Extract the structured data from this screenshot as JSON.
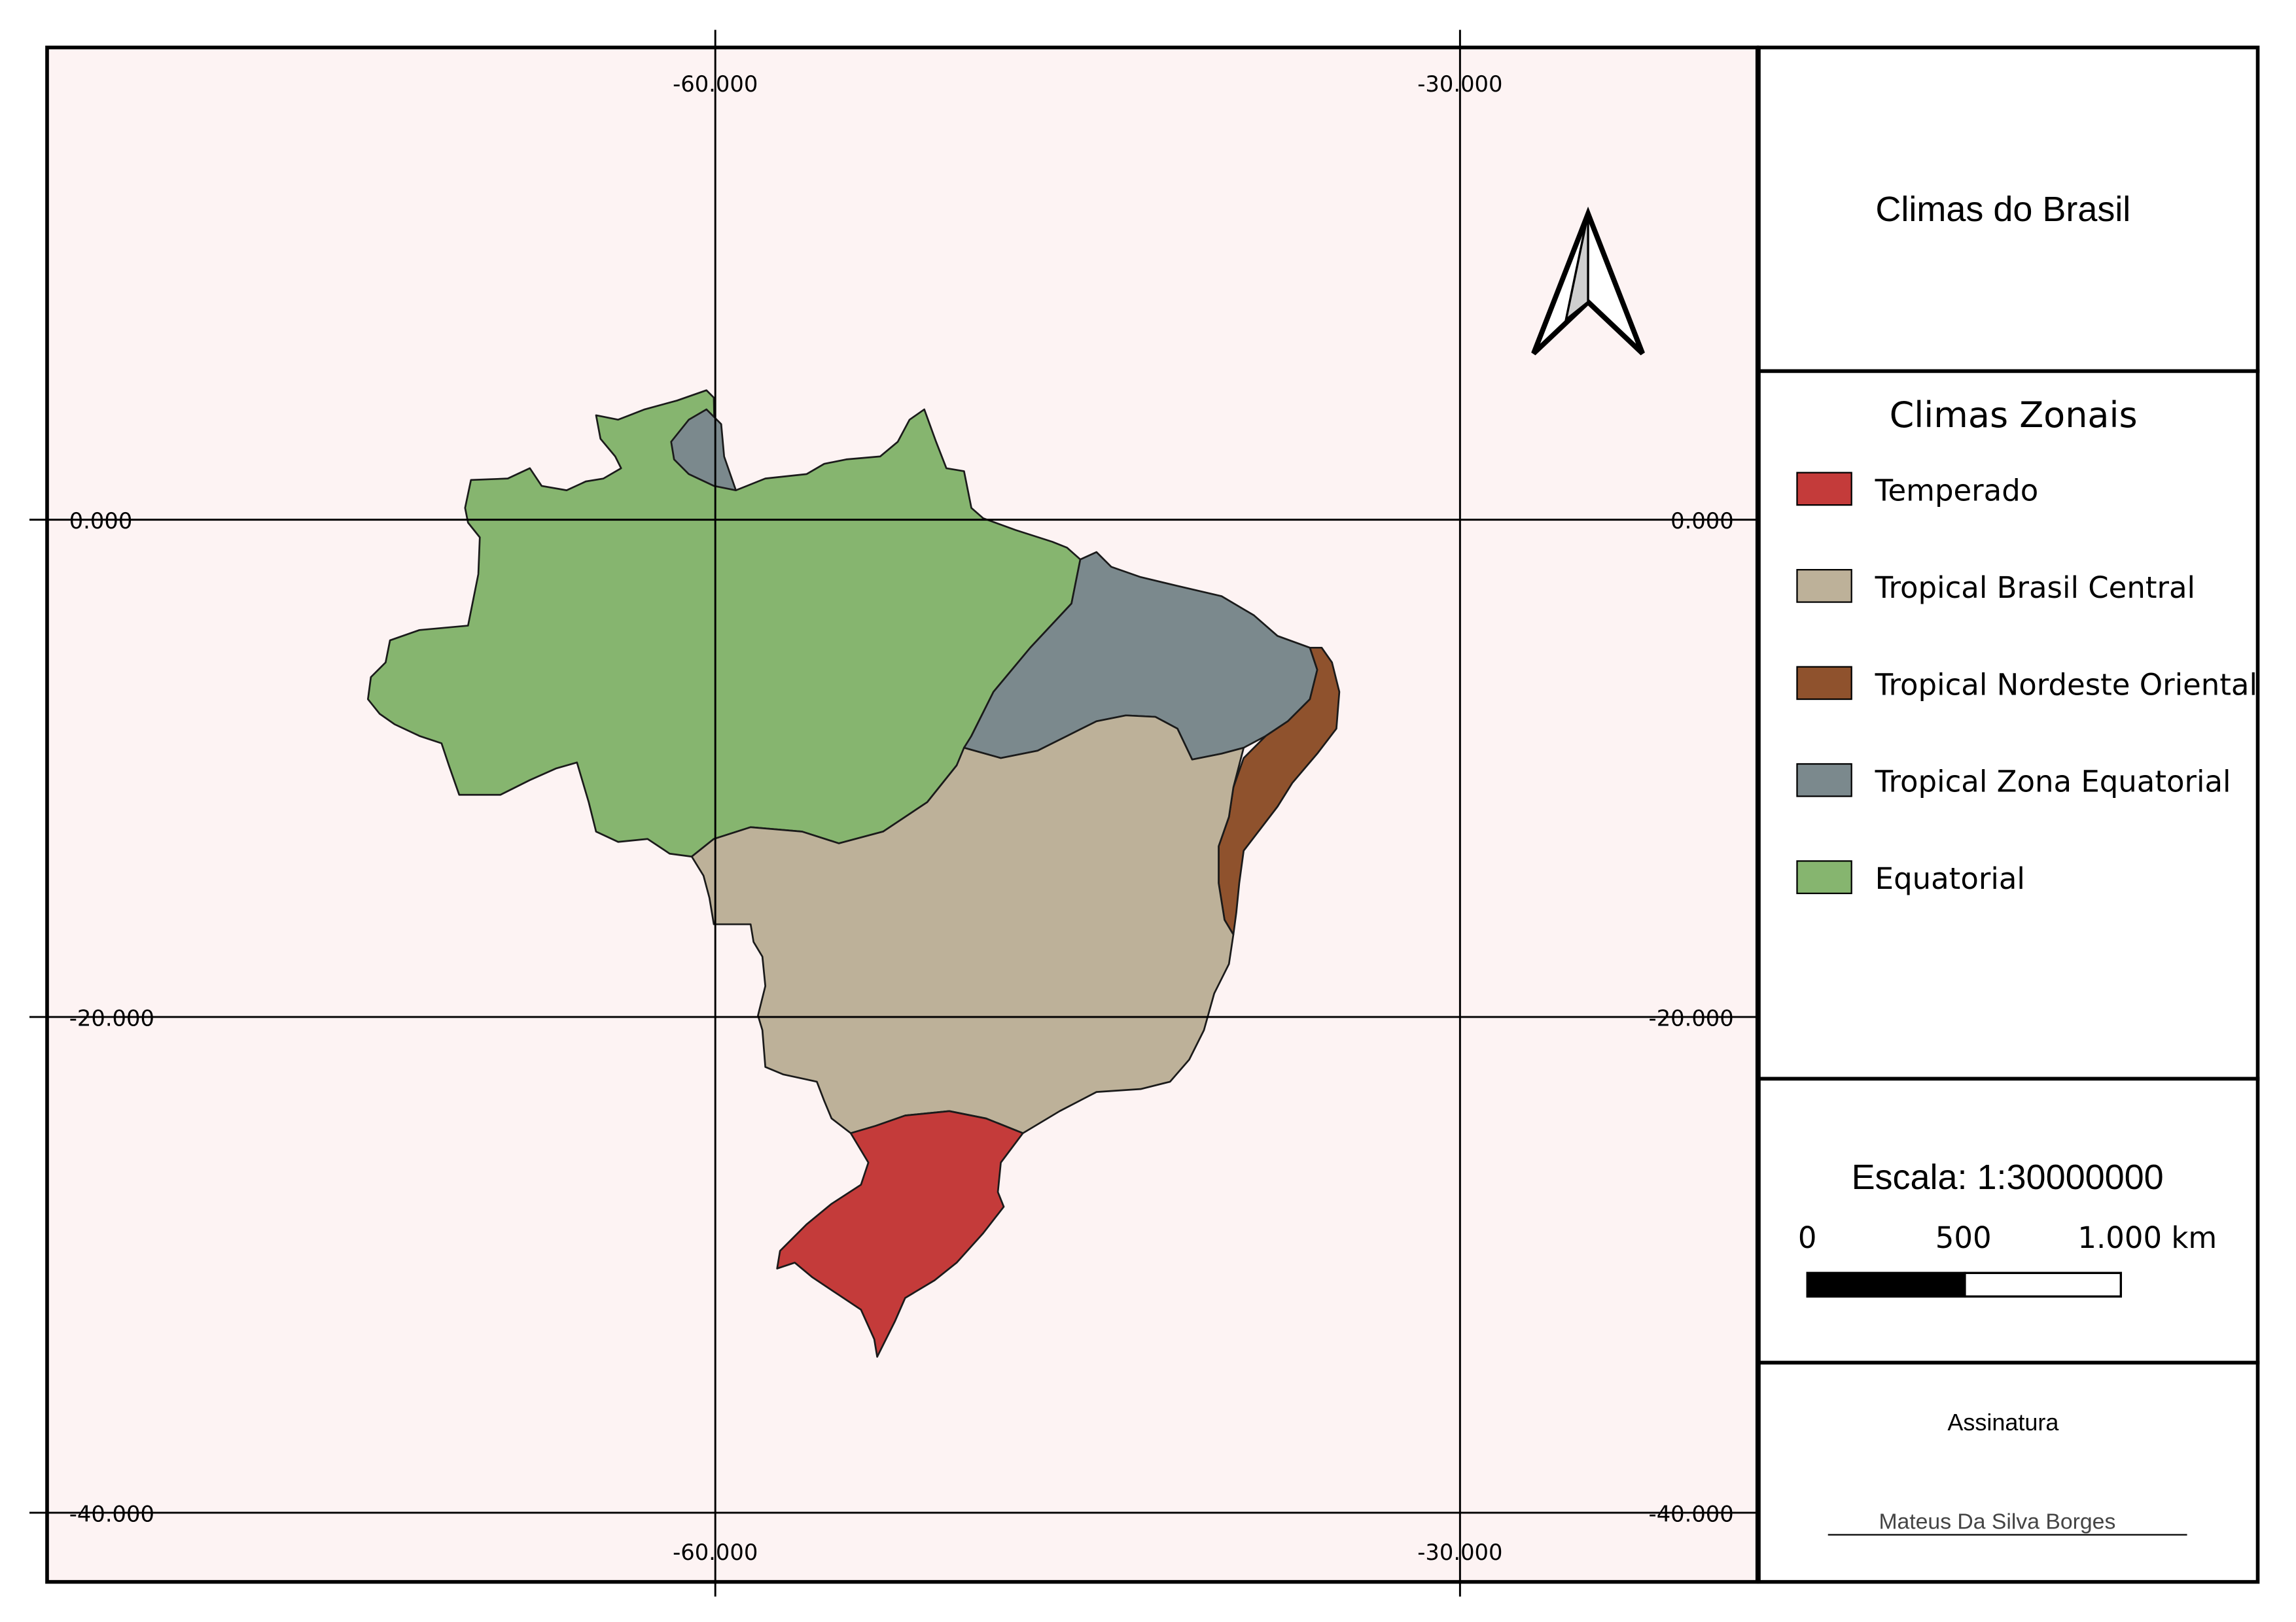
{
  "map": {
    "grid_labels": {
      "lon_top": [
        "-60.000",
        "-30.000"
      ],
      "lon_bottom": [
        "-60.000",
        "-30.000"
      ],
      "lat_left": [
        "0.000",
        "-20.000",
        "-40.000"
      ],
      "lat_right": [
        "0.000",
        "-20.000",
        "-40.000"
      ]
    },
    "background_color": "#fdf3f3",
    "regions": [
      {
        "name": "Equatorial",
        "color": "#86b56f"
      },
      {
        "name": "Tropical Zona Equatorial",
        "color": "#7b898d"
      },
      {
        "name": "Tropical Brasil Central",
        "color": "#bdb199"
      },
      {
        "name": "Tropical Nordeste Oriental",
        "color": "#8f522d"
      },
      {
        "name": "Temperado",
        "color": "#c43b3a"
      }
    ]
  },
  "panel": {
    "title": "Climas do Brasil",
    "legend": {
      "title": "Climas Zonais",
      "items": [
        {
          "label": "Temperado",
          "color": "#c43b3a"
        },
        {
          "label": "Tropical Brasil Central",
          "color": "#bdb199"
        },
        {
          "label": "Tropical Nordeste Oriental",
          "color": "#8f522d"
        },
        {
          "label": "Tropical Zona Equatorial",
          "color": "#7b898d"
        },
        {
          "label": "Equatorial",
          "color": "#86b56f"
        }
      ]
    },
    "scale": {
      "title": "Escala: 1:30000000",
      "ticks": [
        "0",
        "500",
        "1.000 km"
      ]
    },
    "signature": {
      "label": "Assinatura",
      "name": "Mateus Da Silva Borges"
    }
  }
}
